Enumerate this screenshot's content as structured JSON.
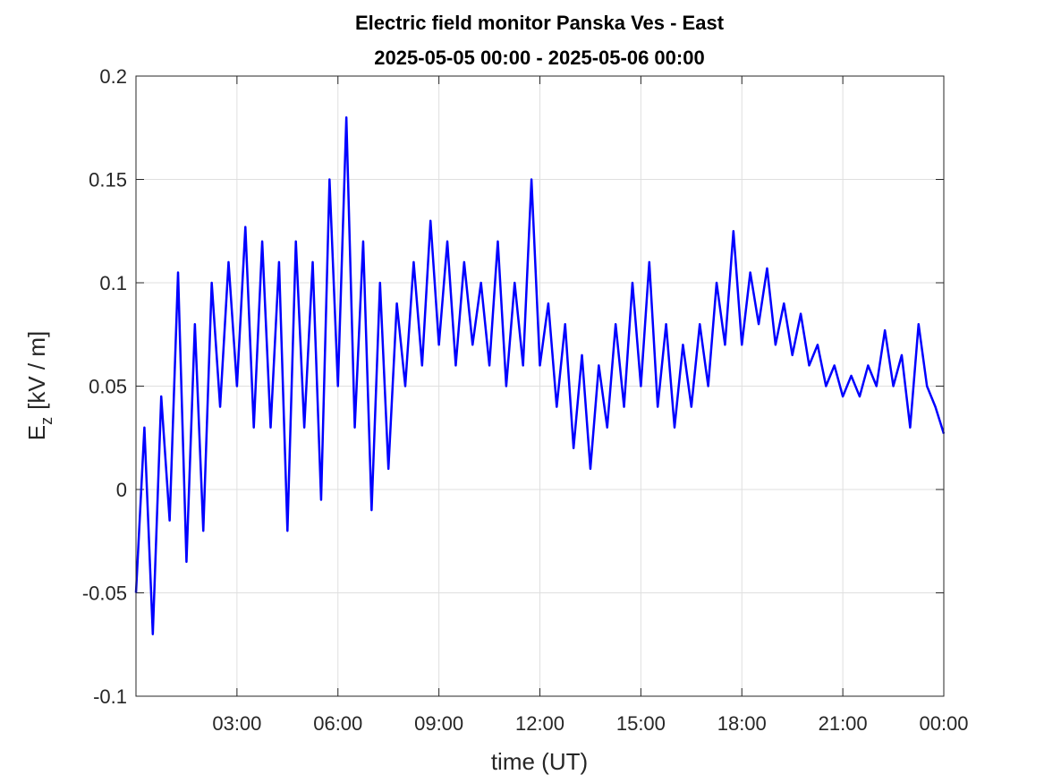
{
  "chart_data": {
    "type": "line",
    "title": "Electric field monitor Panska Ves - East",
    "subtitle": "2025-05-05 00:00 - 2025-05-06 00:00",
    "xlabel": "time (UT)",
    "ylabel": {
      "base": "E",
      "subscript": "z",
      "unit": "[kV / m]"
    },
    "x": [
      0,
      0.25,
      0.5,
      0.75,
      1,
      1.25,
      1.5,
      1.75,
      2,
      2.25,
      2.5,
      2.75,
      3,
      3.25,
      3.5,
      3.75,
      4,
      4.25,
      4.5,
      4.75,
      5,
      5.25,
      5.5,
      5.75,
      6,
      6.25,
      6.5,
      6.75,
      7,
      7.25,
      7.5,
      7.75,
      8,
      8.25,
      8.5,
      8.75,
      9,
      9.25,
      9.5,
      9.75,
      10,
      10.25,
      10.5,
      10.75,
      11,
      11.25,
      11.5,
      11.75,
      12,
      12.25,
      12.5,
      12.75,
      13,
      13.25,
      13.5,
      13.75,
      14,
      14.25,
      14.5,
      14.75,
      15,
      15.25,
      15.5,
      15.75,
      16,
      16.25,
      16.5,
      16.75,
      17,
      17.25,
      17.5,
      17.75,
      18,
      18.25,
      18.5,
      18.75,
      19,
      19.25,
      19.5,
      19.75,
      20,
      20.25,
      20.5,
      20.75,
      21,
      21.25,
      21.5,
      21.75,
      22,
      22.25,
      22.5,
      22.75,
      23,
      23.25,
      23.5,
      23.75,
      24
    ],
    "series": [
      {
        "name": "Ez",
        "color": "#0000ff",
        "values": [
          -0.05,
          0.03,
          -0.07,
          0.045,
          -0.015,
          0.105,
          -0.035,
          0.08,
          -0.02,
          0.1,
          0.04,
          0.11,
          0.05,
          0.127,
          0.03,
          0.12,
          0.03,
          0.11,
          -0.02,
          0.12,
          0.03,
          0.11,
          -0.005,
          0.15,
          0.05,
          0.18,
          0.03,
          0.12,
          -0.01,
          0.1,
          0.01,
          0.09,
          0.05,
          0.11,
          0.06,
          0.13,
          0.07,
          0.12,
          0.06,
          0.11,
          0.07,
          0.1,
          0.06,
          0.12,
          0.05,
          0.1,
          0.06,
          0.15,
          0.06,
          0.09,
          0.04,
          0.08,
          0.02,
          0.065,
          0.01,
          0.06,
          0.03,
          0.08,
          0.04,
          0.1,
          0.05,
          0.11,
          0.04,
          0.08,
          0.03,
          0.07,
          0.04,
          0.08,
          0.05,
          0.1,
          0.07,
          0.125,
          0.07,
          0.105,
          0.08,
          0.107,
          0.07,
          0.09,
          0.065,
          0.085,
          0.06,
          0.07,
          0.05,
          0.06,
          0.045,
          0.055,
          0.045,
          0.06,
          0.05,
          0.077,
          0.05,
          0.065,
          0.03,
          0.08,
          0.05,
          0.04,
          0.027
        ]
      }
    ],
    "xlim": [
      0,
      24
    ],
    "xticks": [
      {
        "value": 3,
        "label": "03:00"
      },
      {
        "value": 6,
        "label": "06:00"
      },
      {
        "value": 9,
        "label": "09:00"
      },
      {
        "value": 12,
        "label": "12:00"
      },
      {
        "value": 15,
        "label": "15:00"
      },
      {
        "value": 18,
        "label": "18:00"
      },
      {
        "value": 21,
        "label": "21:00"
      },
      {
        "value": 24,
        "label": "00:00"
      }
    ],
    "ylim": [
      -0.1,
      0.2
    ],
    "yticks": [
      -0.1,
      -0.05,
      0,
      0.05,
      0.1,
      0.15,
      0.2
    ],
    "grid": true
  }
}
